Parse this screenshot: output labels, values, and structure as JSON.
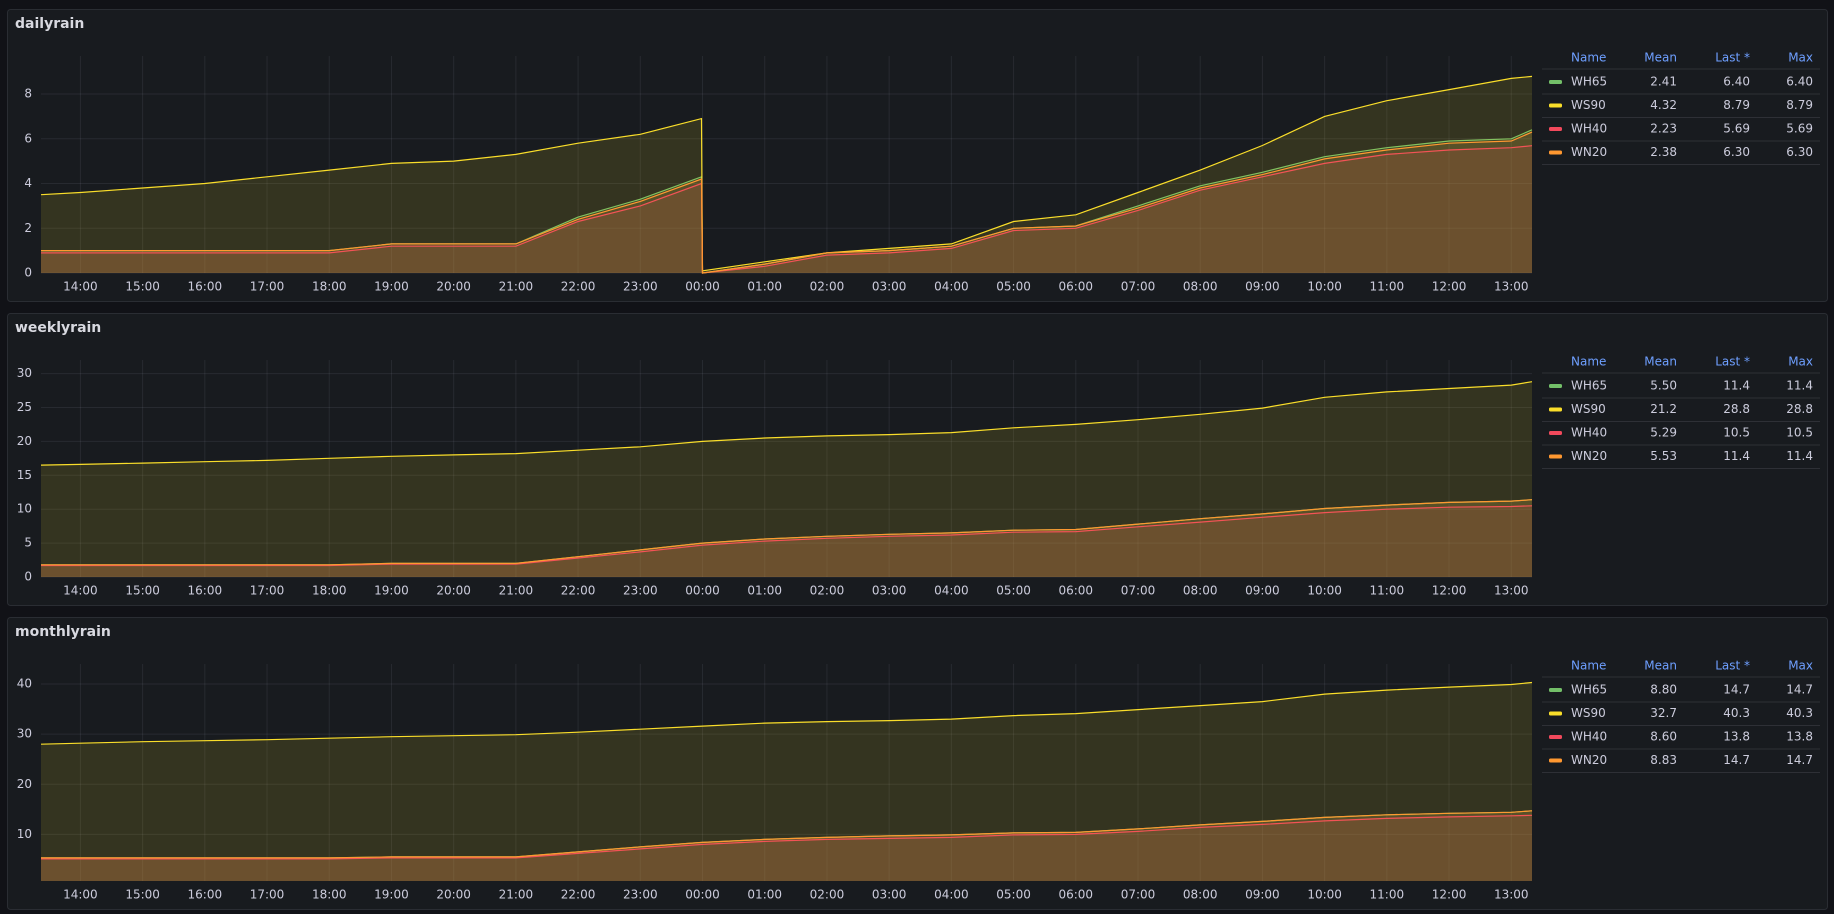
{
  "chart_data": [
    {
      "type": "line",
      "title": "dailyrain",
      "x": [
        "13:22",
        "14:00",
        "15:00",
        "16:00",
        "17:00",
        "18:00",
        "19:00",
        "20:00",
        "21:00",
        "22:00",
        "23:00",
        "23:59",
        "00:00",
        "01:00",
        "02:00",
        "03:00",
        "04:00",
        "05:00",
        "06:00",
        "07:00",
        "08:00",
        "09:00",
        "10:00",
        "11:00",
        "12:00",
        "13:00",
        "13:20"
      ],
      "xlim": [
        "13:22",
        "13:20"
      ],
      "xticks": [
        "14:00",
        "15:00",
        "16:00",
        "17:00",
        "18:00",
        "19:00",
        "20:00",
        "21:00",
        "22:00",
        "23:00",
        "00:00",
        "01:00",
        "02:00",
        "03:00",
        "04:00",
        "05:00",
        "06:00",
        "07:00",
        "08:00",
        "09:00",
        "10:00",
        "11:00",
        "12:00",
        "13:00"
      ],
      "ylim": [
        0,
        9.7
      ],
      "yticks": [
        0,
        2,
        4,
        6,
        8
      ],
      "grid": true,
      "fill": true,
      "legend": {
        "position": "right",
        "columns": [
          "Name",
          "Mean",
          "Last *",
          "Max"
        ]
      },
      "series": [
        {
          "name": "WH65",
          "color": "#73bf69",
          "stats": [
            "2.41",
            "6.40",
            "6.40"
          ],
          "values": [
            1.0,
            1.0,
            1.0,
            1.0,
            1.0,
            1.0,
            1.3,
            1.3,
            1.3,
            2.5,
            3.3,
            4.3,
            0.0,
            0.4,
            0.9,
            1.0,
            1.2,
            2.0,
            2.1,
            3.0,
            3.9,
            4.5,
            5.2,
            5.6,
            5.9,
            6.0,
            6.4
          ]
        },
        {
          "name": "WS90",
          "color": "#fade2a",
          "stats": [
            "4.32",
            "8.79",
            "8.79"
          ],
          "values": [
            3.5,
            3.6,
            3.8,
            4.0,
            4.3,
            4.6,
            4.9,
            5.0,
            5.3,
            5.8,
            6.2,
            6.9,
            0.1,
            0.5,
            0.9,
            1.1,
            1.3,
            2.3,
            2.6,
            3.6,
            4.6,
            5.7,
            7.0,
            7.7,
            8.2,
            8.7,
            8.79
          ]
        },
        {
          "name": "WH40",
          "color": "#f2495c",
          "stats": [
            "2.23",
            "5.69",
            "5.69"
          ],
          "values": [
            0.9,
            0.9,
            0.9,
            0.9,
            0.9,
            0.9,
            1.2,
            1.2,
            1.2,
            2.3,
            3.0,
            4.0,
            0.0,
            0.3,
            0.8,
            0.9,
            1.1,
            1.9,
            2.0,
            2.8,
            3.7,
            4.3,
            4.9,
            5.3,
            5.5,
            5.6,
            5.69
          ]
        },
        {
          "name": "WN20",
          "color": "#ff9830",
          "stats": [
            "2.38",
            "6.30",
            "6.30"
          ],
          "values": [
            1.0,
            1.0,
            1.0,
            1.0,
            1.0,
            1.0,
            1.3,
            1.3,
            1.3,
            2.4,
            3.2,
            4.2,
            0.0,
            0.4,
            0.9,
            1.0,
            1.2,
            2.0,
            2.1,
            2.9,
            3.8,
            4.4,
            5.1,
            5.5,
            5.8,
            5.9,
            6.3
          ]
        }
      ]
    },
    {
      "type": "line",
      "title": "weeklyrain",
      "x": [
        "13:22",
        "14:00",
        "15:00",
        "16:00",
        "17:00",
        "18:00",
        "19:00",
        "20:00",
        "21:00",
        "22:00",
        "23:00",
        "00:00",
        "01:00",
        "02:00",
        "03:00",
        "04:00",
        "05:00",
        "06:00",
        "07:00",
        "08:00",
        "09:00",
        "10:00",
        "11:00",
        "12:00",
        "13:00",
        "13:20"
      ],
      "xlim": [
        "13:22",
        "13:20"
      ],
      "xticks": [
        "14:00",
        "15:00",
        "16:00",
        "17:00",
        "18:00",
        "19:00",
        "20:00",
        "21:00",
        "22:00",
        "23:00",
        "00:00",
        "01:00",
        "02:00",
        "03:00",
        "04:00",
        "05:00",
        "06:00",
        "07:00",
        "08:00",
        "09:00",
        "10:00",
        "11:00",
        "12:00",
        "13:00"
      ],
      "ylim": [
        0,
        32
      ],
      "yticks": [
        0,
        5,
        10,
        15,
        20,
        25,
        30
      ],
      "grid": true,
      "fill": true,
      "legend": {
        "position": "right",
        "columns": [
          "Name",
          "Mean",
          "Last *",
          "Max"
        ]
      },
      "series": [
        {
          "name": "WH65",
          "color": "#73bf69",
          "stats": [
            "5.50",
            "11.4",
            "11.4"
          ],
          "values": [
            1.8,
            1.8,
            1.8,
            1.8,
            1.8,
            1.8,
            2.0,
            2.0,
            2.0,
            3.0,
            4.0,
            5.0,
            5.6,
            6.0,
            6.3,
            6.5,
            6.9,
            7.0,
            7.8,
            8.6,
            9.3,
            10.1,
            10.6,
            11.0,
            11.2,
            11.4
          ]
        },
        {
          "name": "WS90",
          "color": "#fade2a",
          "stats": [
            "21.2",
            "28.8",
            "28.8"
          ],
          "values": [
            16.5,
            16.6,
            16.8,
            17.0,
            17.2,
            17.5,
            17.8,
            18.0,
            18.2,
            18.7,
            19.2,
            20.0,
            20.5,
            20.8,
            21.0,
            21.3,
            22.0,
            22.5,
            23.2,
            24.0,
            24.9,
            26.5,
            27.3,
            27.8,
            28.3,
            28.8
          ]
        },
        {
          "name": "WH40",
          "color": "#f2495c",
          "stats": [
            "5.29",
            "10.5",
            "10.5"
          ],
          "values": [
            1.7,
            1.7,
            1.7,
            1.7,
            1.7,
            1.7,
            1.9,
            1.9,
            1.9,
            2.8,
            3.7,
            4.7,
            5.3,
            5.7,
            6.0,
            6.2,
            6.6,
            6.7,
            7.4,
            8.1,
            8.8,
            9.5,
            10.0,
            10.3,
            10.4,
            10.5
          ]
        },
        {
          "name": "WN20",
          "color": "#ff9830",
          "stats": [
            "5.53",
            "11.4",
            "11.4"
          ],
          "values": [
            1.8,
            1.8,
            1.8,
            1.8,
            1.8,
            1.8,
            2.0,
            2.0,
            2.0,
            3.0,
            4.0,
            5.0,
            5.6,
            6.0,
            6.3,
            6.5,
            6.9,
            7.0,
            7.8,
            8.6,
            9.3,
            10.1,
            10.6,
            11.0,
            11.2,
            11.4
          ]
        }
      ]
    },
    {
      "type": "line",
      "title": "monthlyrain",
      "x": [
        "13:22",
        "14:00",
        "15:00",
        "16:00",
        "17:00",
        "18:00",
        "19:00",
        "20:00",
        "21:00",
        "22:00",
        "23:00",
        "00:00",
        "01:00",
        "02:00",
        "03:00",
        "04:00",
        "05:00",
        "06:00",
        "07:00",
        "08:00",
        "09:00",
        "10:00",
        "11:00",
        "12:00",
        "13:00",
        "13:20"
      ],
      "xlim": [
        "13:22",
        "13:20"
      ],
      "xticks": [
        "14:00",
        "15:00",
        "16:00",
        "17:00",
        "18:00",
        "19:00",
        "20:00",
        "21:00",
        "22:00",
        "23:00",
        "00:00",
        "01:00",
        "02:00",
        "03:00",
        "04:00",
        "05:00",
        "06:00",
        "07:00",
        "08:00",
        "09:00",
        "10:00",
        "11:00",
        "12:00",
        "13:00"
      ],
      "ylim": [
        0.7,
        44
      ],
      "yticks": [
        10,
        20,
        30,
        40
      ],
      "grid": true,
      "fill": true,
      "legend": {
        "position": "right",
        "columns": [
          "Name",
          "Mean",
          "Last *",
          "Max"
        ]
      },
      "series": [
        {
          "name": "WH65",
          "color": "#73bf69",
          "stats": [
            "8.80",
            "14.7",
            "14.7"
          ],
          "values": [
            5.3,
            5.3,
            5.3,
            5.3,
            5.3,
            5.3,
            5.5,
            5.5,
            5.5,
            6.5,
            7.5,
            8.4,
            9.0,
            9.4,
            9.7,
            9.9,
            10.3,
            10.4,
            11.1,
            11.9,
            12.6,
            13.4,
            13.9,
            14.2,
            14.4,
            14.7
          ]
        },
        {
          "name": "WS90",
          "color": "#fade2a",
          "stats": [
            "32.7",
            "40.3",
            "40.3"
          ],
          "values": [
            28.0,
            28.2,
            28.5,
            28.7,
            28.9,
            29.2,
            29.5,
            29.7,
            29.9,
            30.4,
            31.0,
            31.6,
            32.2,
            32.5,
            32.7,
            33.0,
            33.7,
            34.1,
            34.9,
            35.7,
            36.5,
            38.0,
            38.8,
            39.4,
            39.9,
            40.3
          ]
        },
        {
          "name": "WH40",
          "color": "#f2495c",
          "stats": [
            "8.60",
            "13.8",
            "13.8"
          ],
          "values": [
            5.1,
            5.1,
            5.1,
            5.1,
            5.1,
            5.1,
            5.3,
            5.3,
            5.3,
            6.2,
            7.1,
            8.0,
            8.6,
            9.0,
            9.2,
            9.4,
            9.9,
            10.0,
            10.6,
            11.4,
            12.0,
            12.7,
            13.2,
            13.5,
            13.7,
            13.8
          ]
        },
        {
          "name": "WN20",
          "color": "#ff9830",
          "stats": [
            "8.83",
            "14.7",
            "14.7"
          ],
          "values": [
            5.3,
            5.3,
            5.3,
            5.3,
            5.3,
            5.3,
            5.5,
            5.5,
            5.5,
            6.5,
            7.5,
            8.4,
            9.0,
            9.4,
            9.7,
            9.9,
            10.3,
            10.4,
            11.1,
            11.9,
            12.6,
            13.4,
            13.9,
            14.2,
            14.4,
            14.7
          ]
        }
      ]
    }
  ]
}
